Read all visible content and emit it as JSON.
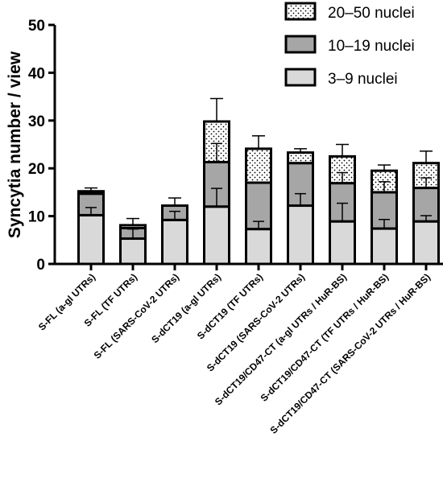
{
  "chart_data": {
    "type": "bar",
    "stacked": true,
    "ylabel": "Syncytia number / view",
    "xlabel": "",
    "ylim": [
      0,
      50
    ],
    "yticks": [
      0,
      10,
      20,
      30,
      40,
      50
    ],
    "legend_position": "top-right",
    "categories": [
      "S-FL (a-gl UTRs)",
      "S-FL (TF UTRs)",
      "S-FL (SARS-CoV-2 UTRs)",
      "S-dCT19 (a-gl UTRs)",
      "S-dCT19 (TF UTRs)",
      "S-dCT19 (SARS-CoV-2 UTRs)",
      "S-dCT19/CD47-CT (a-gl UTRs / HuR-BS)",
      "S-dCT19/CD47-CT (TF UTRs / HuR-BS)",
      "S-dCT19/CD47-CT (SARS-CoV-2 UTRs / HuR-BS)"
    ],
    "series": [
      {
        "name": "3–9 nuclei",
        "color": "#d9d9d9",
        "pattern": "solid",
        "values": [
          10.2,
          5.3,
          9.2,
          12.0,
          7.3,
          12.2,
          8.9,
          7.4,
          8.9
        ],
        "error": [
          1.6,
          2.0,
          1.8,
          3.8,
          1.6,
          2.5,
          3.8,
          1.9,
          1.2
        ]
      },
      {
        "name": "10–19 nuclei",
        "color": "#a6a6a6",
        "pattern": "solid",
        "values": [
          4.5,
          2.2,
          3.0,
          9.3,
          9.7,
          8.9,
          8.0,
          7.6,
          7.0
        ],
        "error": [
          0.0,
          0.0,
          0.0,
          0.0,
          0.0,
          0.0,
          0.0,
          0.0,
          0.0
        ]
      },
      {
        "name": "20–50 nuclei",
        "color": "#ffffff",
        "pattern": "dots",
        "values": [
          0.5,
          0.6,
          0.0,
          8.5,
          7.1,
          2.2,
          5.6,
          4.5,
          5.2
        ],
        "error": [
          0.7,
          1.4,
          1.6,
          4.8,
          2.7,
          0.8,
          2.5,
          1.2,
          2.5
        ]
      }
    ],
    "inner_errors": [
      [
        0,
        0,
        0,
        3.9,
        0,
        0,
        2.2,
        2.2,
        2.1
      ],
      [
        0,
        0,
        0,
        0,
        0,
        0,
        0,
        0,
        0
      ]
    ],
    "bar_outline": "#000000",
    "legend_order": [
      "20–50 nuclei",
      "10–19 nuclei",
      "3–9 nuclei"
    ]
  }
}
